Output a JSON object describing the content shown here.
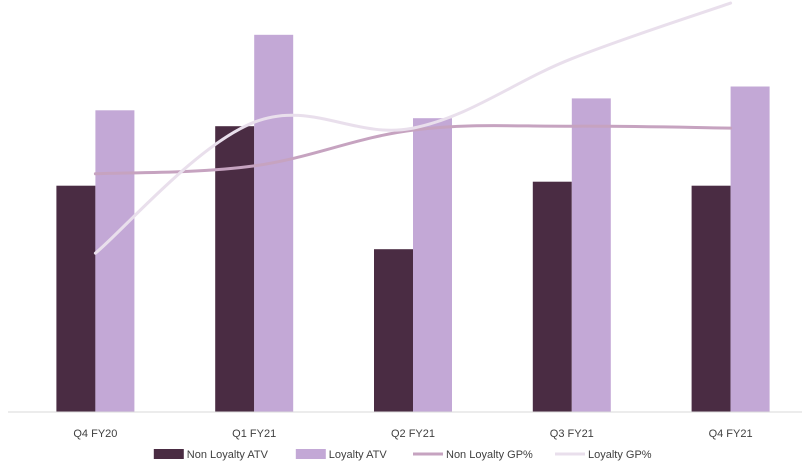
{
  "chart_data": {
    "type": "bar",
    "categories": [
      "Q4 FY20",
      "Q1 FY21",
      "Q2 FY21",
      "Q3 FY21",
      "Q4 FY21"
    ],
    "ylim": [
      0,
      100
    ],
    "grid": false,
    "legend_position": "bottom",
    "series": [
      {
        "name": "Non Loyalty ATV",
        "kind": "bar",
        "color": "#4a2c43",
        "values": [
          57,
          72,
          41,
          58,
          57
        ]
      },
      {
        "name": "Loyalty ATV",
        "kind": "bar",
        "color": "#c3a8d6",
        "values": [
          76,
          95,
          74,
          79,
          82
        ]
      },
      {
        "name": "Non Loyalty GP%",
        "kind": "line",
        "color": "#c6a3c0",
        "values": [
          60,
          62,
          71,
          72,
          71.5
        ]
      },
      {
        "name": "Loyalty GP%",
        "kind": "line",
        "color": "#e9dfec",
        "values": [
          40,
          73,
          71.5,
          89,
          103
        ]
      }
    ]
  }
}
